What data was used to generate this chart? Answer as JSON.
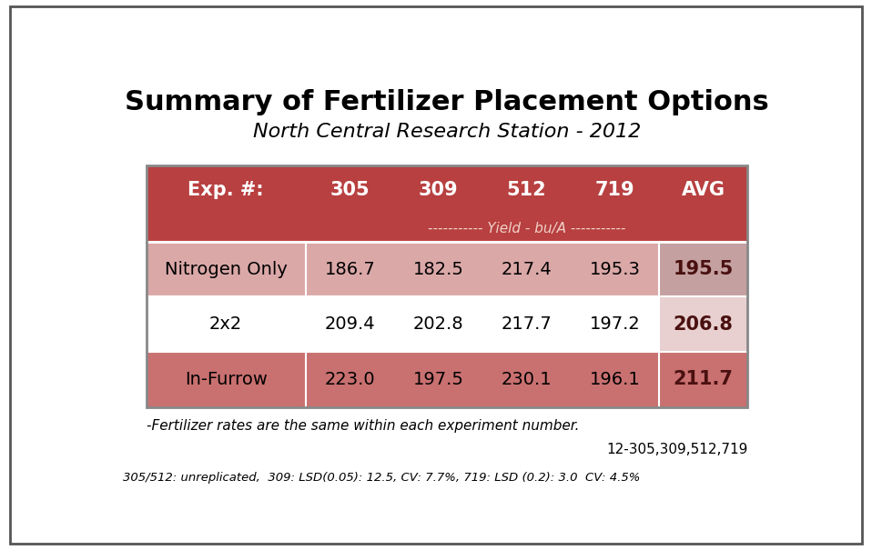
{
  "title": "Summary of Fertilizer Placement Options",
  "subtitle": "North Central Research Station - 2012",
  "header_row": [
    "Exp. #:",
    "305",
    "309",
    "512",
    "719",
    "AVG"
  ],
  "yield_label": "----------- Yield - bu/A -----------",
  "rows": [
    [
      "Nitrogen Only",
      "186.7",
      "182.5",
      "217.4",
      "195.3",
      "195.5"
    ],
    [
      "2x2",
      "209.4",
      "202.8",
      "217.7",
      "197.2",
      "206.8"
    ],
    [
      "In-Furrow",
      "223.0",
      "197.5",
      "230.1",
      "196.1",
      "211.7"
    ]
  ],
  "footnote1": "-Fertilizer rates are the same within each experiment number.",
  "footnote2": "12-305,309,512,719",
  "footer": "305/512: unreplicated,  309: LSD(0.05): 12.5, CV: 7.7%, 719: LSD (0.2): 3.0  CV: 4.5%",
  "header_bg": "#b84040",
  "row_colors": [
    "#dba8a8",
    "#ffffff",
    "#c97070"
  ],
  "avg_col_colors": [
    "#c4a0a0",
    "#e8d0d0",
    "#c97070"
  ],
  "border_color": "#888888",
  "title_fontsize": 22,
  "subtitle_fontsize": 16,
  "header_fontsize": 15,
  "cell_fontsize": 14,
  "footer_fontsize": 9.5,
  "avg_text_color": "#4a1010",
  "data_text_color": "#000000",
  "header_text_color": "#ffffff"
}
